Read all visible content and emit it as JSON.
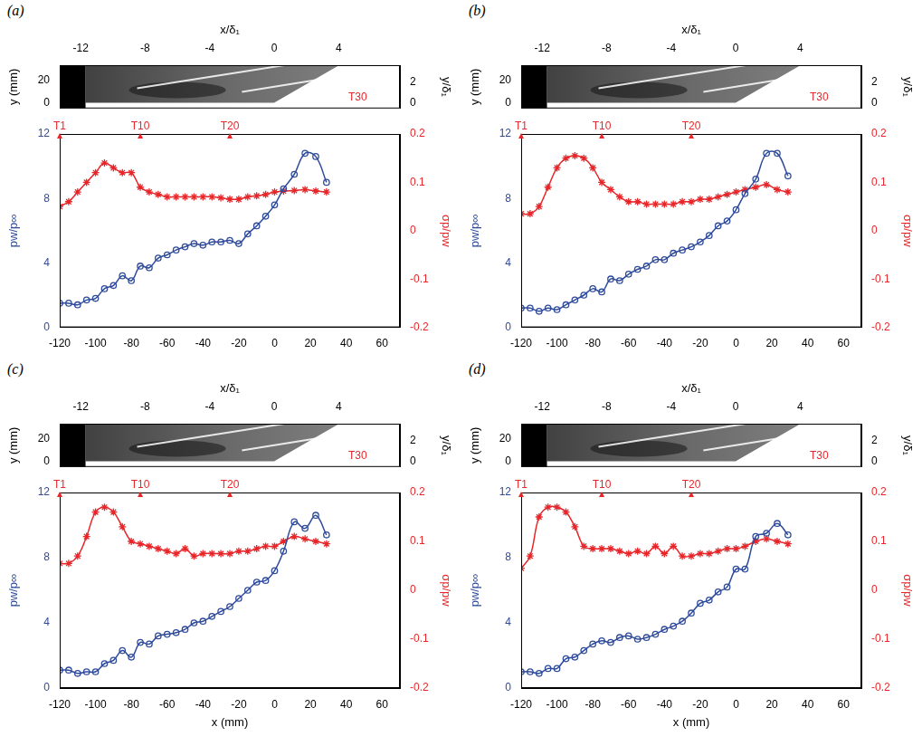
{
  "chart_data": [
    {
      "type": "line",
      "panel_label": "(a)",
      "xlim": [
        -120,
        70
      ],
      "xticks": [
        -120,
        -100,
        -80,
        -60,
        -40,
        -20,
        0,
        20,
        40,
        60
      ],
      "ylim": [
        0,
        12
      ],
      "yticks": [
        0,
        4,
        8,
        12
      ],
      "y_label": "pw/p∞",
      "y2lim": [
        -0.2,
        0.2
      ],
      "y2ticks": [
        -0.2,
        -0.1,
        0,
        0.1,
        0.2
      ],
      "y2_label": "σp/pw",
      "grid": false,
      "x": [
        -120,
        -115,
        -110,
        -105,
        -100,
        -95,
        -90,
        -85,
        -80,
        -75,
        -70,
        -65,
        -60,
        -55,
        -50,
        -45,
        -40,
        -35,
        -30,
        -25,
        -20,
        -15,
        -10,
        -5,
        0,
        5,
        11,
        17,
        23,
        29
      ],
      "series": [
        {
          "name": "pw/p∞",
          "color": "#2e4a9a",
          "marker": "circle",
          "values": [
            1.5,
            1.5,
            1.4,
            1.7,
            1.8,
            2.4,
            2.6,
            3.2,
            2.9,
            3.8,
            3.7,
            4.3,
            4.5,
            4.8,
            5.0,
            5.2,
            5.1,
            5.3,
            5.3,
            5.4,
            5.2,
            5.8,
            6.3,
            6.9,
            7.6,
            8.6,
            9.5,
            10.8,
            10.6,
            9.0
          ]
        },
        {
          "name": "σp/pw",
          "color": "#e8262a",
          "marker": "star",
          "axis": "y2",
          "values": [
            0.05,
            0.06,
            0.08,
            0.1,
            0.12,
            0.14,
            0.13,
            0.12,
            0.12,
            0.09,
            0.08,
            0.075,
            0.07,
            0.07,
            0.07,
            0.07,
            0.07,
            0.07,
            0.068,
            0.065,
            0.065,
            0.07,
            0.072,
            0.075,
            0.08,
            0.082,
            0.083,
            0.085,
            0.082,
            0.08
          ]
        }
      ],
      "sensor_labels": [
        {
          "label": "T1",
          "x": -120
        },
        {
          "label": "T10",
          "x": -75
        },
        {
          "label": "T20",
          "x": -25
        }
      ],
      "image": {
        "x_label": "x/δ₁",
        "xlim": [
          -13.3,
          7.8
        ],
        "xticks": [
          -12,
          -8,
          -4,
          0,
          4
        ],
        "y_label": "y (mm)",
        "ylim": [
          -5,
          33
        ],
        "yticks": [
          0,
          20
        ],
        "y2_label": "y/δ₁",
        "y2lim": [
          -0.56,
          3.67
        ],
        "y2ticks": [
          0,
          2
        ],
        "labels": [
          {
            "label": "T30",
            "x": 4.6,
            "y": 5
          }
        ]
      }
    },
    {
      "type": "line",
      "panel_label": "(b)",
      "xlim": [
        -120,
        70
      ],
      "xticks": [
        -120,
        -100,
        -80,
        -60,
        -40,
        -20,
        0,
        20,
        40,
        60
      ],
      "ylim": [
        0,
        12
      ],
      "yticks": [
        0,
        4,
        8,
        12
      ],
      "y_label": "pw/p∞",
      "y2lim": [
        -0.2,
        0.2
      ],
      "y2ticks": [
        -0.2,
        -0.1,
        0,
        0.1,
        0.2
      ],
      "y2_label": "σp/pw",
      "grid": false,
      "x": [
        -120,
        -115,
        -110,
        -105,
        -100,
        -95,
        -90,
        -85,
        -80,
        -75,
        -70,
        -65,
        -60,
        -55,
        -50,
        -45,
        -40,
        -35,
        -30,
        -25,
        -20,
        -15,
        -10,
        -5,
        0,
        5,
        11,
        17,
        23,
        29
      ],
      "series": [
        {
          "name": "pw/p∞",
          "color": "#2e4a9a",
          "marker": "circle",
          "values": [
            1.2,
            1.2,
            1.0,
            1.2,
            1.1,
            1.4,
            1.7,
            2.0,
            2.4,
            2.2,
            3.0,
            2.9,
            3.3,
            3.6,
            3.8,
            4.2,
            4.2,
            4.6,
            4.8,
            5.0,
            5.3,
            5.7,
            6.3,
            6.6,
            7.3,
            8.3,
            9.2,
            10.8,
            10.8,
            9.4
          ]
        },
        {
          "name": "σp/pw",
          "color": "#e8262a",
          "marker": "star",
          "axis": "y2",
          "values": [
            0.035,
            0.035,
            0.05,
            0.09,
            0.13,
            0.15,
            0.155,
            0.15,
            0.13,
            0.1,
            0.085,
            0.07,
            0.06,
            0.06,
            0.055,
            0.055,
            0.055,
            0.055,
            0.06,
            0.06,
            0.065,
            0.065,
            0.07,
            0.075,
            0.08,
            0.085,
            0.09,
            0.095,
            0.085,
            0.08
          ]
        }
      ],
      "sensor_labels": [
        {
          "label": "T1",
          "x": -120
        },
        {
          "label": "T10",
          "x": -75
        },
        {
          "label": "T20",
          "x": -25
        }
      ],
      "image": {
        "x_label": "x/δ₁",
        "xlim": [
          -13.3,
          7.8
        ],
        "xticks": [
          -12,
          -8,
          -4,
          0,
          4
        ],
        "y_label": "y (mm)",
        "ylim": [
          -5,
          33
        ],
        "yticks": [
          0,
          20
        ],
        "y2_label": "y/δ₁",
        "y2lim": [
          -0.56,
          3.67
        ],
        "y2ticks": [
          0,
          2
        ],
        "labels": [
          {
            "label": "T30",
            "x": 4.6,
            "y": 5
          }
        ]
      }
    },
    {
      "type": "line",
      "panel_label": "(c)",
      "xlim": [
        -120,
        70
      ],
      "xticks": [
        -120,
        -100,
        -80,
        -60,
        -40,
        -20,
        0,
        20,
        40,
        60
      ],
      "x_label": "x (mm)",
      "ylim": [
        0,
        12
      ],
      "yticks": [
        0,
        4,
        8,
        12
      ],
      "y_label": "pw/p∞",
      "y2lim": [
        -0.2,
        0.2
      ],
      "y2ticks": [
        -0.2,
        -0.1,
        0,
        0.1,
        0.2
      ],
      "y2_label": "σp/pw",
      "grid": false,
      "x": [
        -120,
        -115,
        -110,
        -105,
        -100,
        -95,
        -90,
        -85,
        -80,
        -75,
        -70,
        -65,
        -60,
        -55,
        -50,
        -45,
        -40,
        -35,
        -30,
        -25,
        -20,
        -15,
        -10,
        -5,
        0,
        5,
        11,
        17,
        23,
        29
      ],
      "series": [
        {
          "name": "pw/p∞",
          "color": "#2e4a9a",
          "marker": "circle",
          "values": [
            1.1,
            1.1,
            0.9,
            1.0,
            1.0,
            1.5,
            1.7,
            2.3,
            1.9,
            2.8,
            2.7,
            3.2,
            3.3,
            3.4,
            3.6,
            4.0,
            4.1,
            4.4,
            4.7,
            5.0,
            5.5,
            6.0,
            6.5,
            6.6,
            7.2,
            8.4,
            10.2,
            9.8,
            10.6,
            9.4
          ]
        },
        {
          "name": "σp/pw",
          "color": "#e8262a",
          "marker": "star",
          "axis": "y2",
          "values": [
            0.055,
            0.055,
            0.07,
            0.11,
            0.16,
            0.17,
            0.16,
            0.13,
            0.1,
            0.095,
            0.09,
            0.085,
            0.08,
            0.075,
            0.085,
            0.07,
            0.075,
            0.075,
            0.075,
            0.075,
            0.08,
            0.08,
            0.085,
            0.09,
            0.09,
            0.1,
            0.11,
            0.105,
            0.1,
            0.095
          ]
        }
      ],
      "sensor_labels": [
        {
          "label": "T1",
          "x": -120
        },
        {
          "label": "T10",
          "x": -75
        },
        {
          "label": "T20",
          "x": -25
        }
      ],
      "image": {
        "x_label": "x/δ₁",
        "xlim": [
          -13.3,
          7.8
        ],
        "xticks": [
          -12,
          -8,
          -4,
          0,
          4
        ],
        "y_label": "y (mm)",
        "ylim": [
          -5,
          33
        ],
        "yticks": [
          0,
          20
        ],
        "y2_label": "y/δ₁",
        "y2lim": [
          -0.56,
          3.67
        ],
        "y2ticks": [
          0,
          2
        ],
        "labels": [
          {
            "label": "T30",
            "x": 4.6,
            "y": 5
          }
        ]
      }
    },
    {
      "type": "line",
      "panel_label": "(d)",
      "xlim": [
        -120,
        70
      ],
      "xticks": [
        -120,
        -100,
        -80,
        -60,
        -40,
        -20,
        0,
        20,
        40,
        60
      ],
      "x_label": "x (mm)",
      "ylim": [
        0,
        12
      ],
      "yticks": [
        0,
        4,
        8,
        12
      ],
      "y_label": "pw/p∞",
      "y2lim": [
        -0.2,
        0.2
      ],
      "y2ticks": [
        -0.2,
        -0.1,
        0,
        0.1,
        0.2
      ],
      "y2_label": "σp/pw",
      "grid": false,
      "x": [
        -120,
        -115,
        -110,
        -105,
        -100,
        -95,
        -90,
        -85,
        -80,
        -75,
        -70,
        -65,
        -60,
        -55,
        -50,
        -45,
        -40,
        -35,
        -30,
        -25,
        -20,
        -15,
        -10,
        -5,
        0,
        5,
        11,
        17,
        23,
        29
      ],
      "series": [
        {
          "name": "pw/p∞",
          "color": "#2e4a9a",
          "marker": "circle",
          "values": [
            1.0,
            1.0,
            0.9,
            1.2,
            1.2,
            1.8,
            1.9,
            2.3,
            2.7,
            2.9,
            2.8,
            3.1,
            3.2,
            3.0,
            3.1,
            3.3,
            3.6,
            3.8,
            4.1,
            4.6,
            5.2,
            5.4,
            5.9,
            6.2,
            7.3,
            7.3,
            9.3,
            9.5,
            10.1,
            9.4
          ]
        },
        {
          "name": "σp/pw",
          "color": "#e8262a",
          "marker": "star",
          "axis": "y2",
          "values": [
            0.045,
            0.07,
            0.15,
            0.17,
            0.17,
            0.16,
            0.13,
            0.09,
            0.085,
            0.085,
            0.085,
            0.08,
            0.075,
            0.08,
            0.075,
            0.09,
            0.075,
            0.09,
            0.07,
            0.07,
            0.075,
            0.075,
            0.08,
            0.085,
            0.085,
            0.09,
            0.1,
            0.105,
            0.1,
            0.095
          ]
        }
      ],
      "sensor_labels": [
        {
          "label": "T1",
          "x": -120
        },
        {
          "label": "T10",
          "x": -75
        },
        {
          "label": "T20",
          "x": -25
        }
      ],
      "image": {
        "x_label": "x/δ₁",
        "xlim": [
          -13.3,
          7.8
        ],
        "xticks": [
          -12,
          -8,
          -4,
          0,
          4
        ],
        "y_label": "y (mm)",
        "ylim": [
          -5,
          33
        ],
        "yticks": [
          0,
          20
        ],
        "y2_label": "y/δ₁",
        "y2lim": [
          -0.56,
          3.67
        ],
        "y2ticks": [
          0,
          2
        ],
        "labels": [
          {
            "label": "T30",
            "x": 4.6,
            "y": 5
          }
        ]
      }
    }
  ]
}
